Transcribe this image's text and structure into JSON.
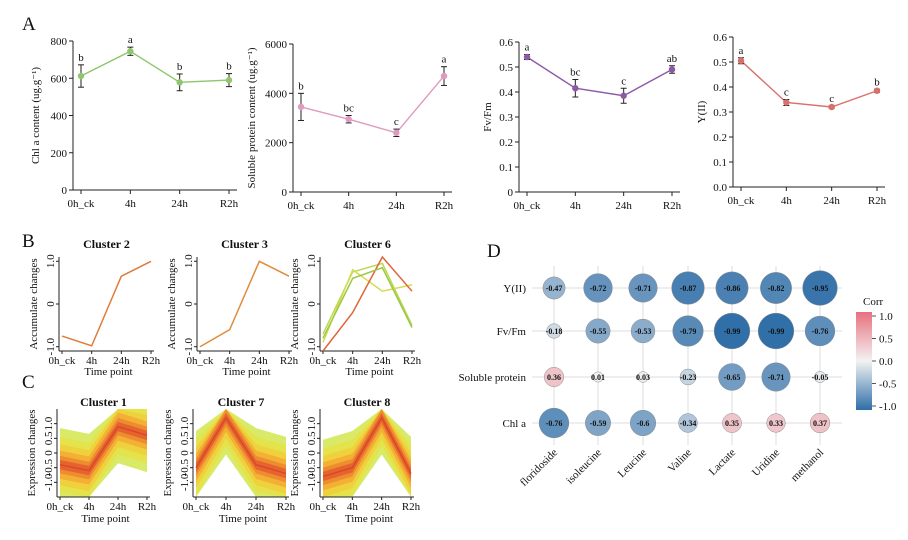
{
  "panels": {
    "A": "A",
    "B": "B",
    "C": "C",
    "D": "D"
  },
  "panelA": [
    {
      "type": "line",
      "ylabel": "Chl a content (ug.g⁻¹)",
      "categories": [
        "0h_ck",
        "4h",
        "24h",
        "R2h"
      ],
      "values": [
        612,
        745,
        578,
        590
      ],
      "errors": [
        60,
        22,
        45,
        35
      ],
      "letters": [
        "b",
        "a",
        "b",
        "b"
      ],
      "ylim": [
        0,
        800
      ],
      "yticks": [
        "0",
        "200",
        "400",
        "600",
        "800"
      ],
      "color": "#8dc66b"
    },
    {
      "type": "line",
      "ylabel": "Soluble protein content (ug.g⁻¹)",
      "categories": [
        "0h_ck",
        "4h",
        "24h",
        "R2h"
      ],
      "values": [
        3450,
        2950,
        2400,
        4700
      ],
      "errors": [
        550,
        150,
        150,
        380
      ],
      "letters": [
        "b",
        "bc",
        "c",
        "a"
      ],
      "ylim": [
        0,
        6000
      ],
      "yticks": [
        "0",
        "2000",
        "4000",
        "6000"
      ],
      "color": "#e09ac0"
    },
    {
      "type": "line",
      "ylabel": "Fv/Fm",
      "categories": [
        "0h_ck",
        "4h",
        "24h",
        "R2h"
      ],
      "values": [
        0.54,
        0.415,
        0.385,
        0.49
      ],
      "errors": [
        0.01,
        0.035,
        0.03,
        0.015
      ],
      "letters": [
        "a",
        "bc",
        "c",
        "ab"
      ],
      "ylim": [
        0,
        0.6
      ],
      "yticks": [
        "0",
        "0.1",
        "0.2",
        "0.3",
        "0.4",
        "0.5",
        "0.6"
      ],
      "color": "#8b5aa6"
    },
    {
      "type": "line",
      "ylabel": "Y(II)",
      "categories": [
        "0h_ck",
        "4h",
        "24h",
        "R2h"
      ],
      "values": [
        0.505,
        0.338,
        0.32,
        0.385
      ],
      "errors": [
        0.012,
        0.012,
        0.005,
        0.006
      ],
      "letters": [
        "a",
        "c",
        "c",
        "b"
      ],
      "ylim": [
        0,
        0.6
      ],
      "yticks": [
        "0.0",
        "0.1",
        "0.2",
        "0.3",
        "0.4",
        "0.5",
        "0.6"
      ],
      "color": "#d9706a"
    }
  ],
  "panelB": {
    "ylabel": "Accumulate changes",
    "xlabel": "Time point",
    "categories": [
      "0h_ck",
      "4h",
      "24h",
      "R2h"
    ],
    "yticks": [
      "-1.0",
      "0",
      "1.0"
    ],
    "ylim": [
      -1.1,
      1.1
    ],
    "clusters": [
      {
        "title": "Cluster 2",
        "lines": [
          {
            "values": [
              -0.75,
              -0.98,
              0.65,
              1.0
            ],
            "color": "#e07b39"
          }
        ]
      },
      {
        "title": "Cluster 3",
        "lines": [
          {
            "values": [
              -1.0,
              -0.6,
              1.0,
              0.65
            ],
            "color": "#e08b3a"
          }
        ]
      },
      {
        "title": "Cluster 6",
        "lines": [
          {
            "values": [
              -0.7,
              0.75,
              0.95,
              -0.5
            ],
            "color": "#b9d94a"
          },
          {
            "values": [
              -0.9,
              0.8,
              0.3,
              0.45
            ],
            "color": "#d6dc50"
          },
          {
            "values": [
              -1.1,
              -0.2,
              1.1,
              0.3
            ],
            "color": "#e0663a"
          },
          {
            "values": [
              -0.8,
              0.6,
              0.85,
              -0.55
            ],
            "color": "#9cc84a"
          }
        ]
      }
    ]
  },
  "panelC": {
    "ylabel": "Expression changes",
    "xlabel": "Time point",
    "categories": [
      "0h_ck",
      "4h",
      "24h",
      "R2h"
    ],
    "yticks": [
      "-1.0",
      "-0.5",
      "0",
      "0.5",
      "1.0"
    ],
    "ylim": [
      -1.5,
      1.5
    ],
    "clusters": [
      {
        "title": "Cluster 1",
        "mean": [
          -0.4,
          -0.6,
          0.9,
          0.6
        ]
      },
      {
        "title": "Cluster 7",
        "mean": [
          -0.5,
          1.2,
          -0.4,
          -0.7
        ]
      },
      {
        "title": "Cluster 8",
        "mean": [
          -0.8,
          -0.5,
          1.2,
          -0.7
        ]
      }
    ]
  },
  "panelD": {
    "type": "heatmap",
    "rows": [
      "Y(II)",
      "Fv/Fm",
      "Soluble protein",
      "Chl a"
    ],
    "cols": [
      "floridoside",
      "isoleucine",
      "Leucine",
      "Valine",
      "Lactate",
      "Uridine",
      "methanol"
    ],
    "labels": [
      [
        "-0.47",
        "-0.72",
        "-0.71",
        "-0.87",
        "-0.86",
        "-0.82",
        "-0.95"
      ],
      [
        "-0.18",
        "-0.55",
        "-0.53",
        "-0.79",
        "-0.99",
        "-0.99",
        "-0.76"
      ],
      [
        "0.36",
        "0.01",
        "0.03",
        "-0.23",
        "-0.65",
        "-0.71",
        "-0.05"
      ],
      [
        "-0.76",
        "-0.59",
        "-0.6",
        "-0.34",
        "0.35",
        "0.33",
        "0.37"
      ]
    ],
    "values": [
      [
        -0.47,
        -0.72,
        -0.71,
        -0.87,
        -0.86,
        -0.82,
        -0.95
      ],
      [
        -0.18,
        -0.55,
        -0.53,
        -0.79,
        -0.99,
        -0.99,
        -0.76
      ],
      [
        0.36,
        0.01,
        0.03,
        -0.23,
        -0.65,
        -0.71,
        -0.05
      ],
      [
        -0.76,
        -0.59,
        -0.6,
        -0.34,
        0.35,
        0.33,
        0.37
      ]
    ],
    "legend": {
      "title": "Corr",
      "ticks": [
        "1.0",
        "0.5",
        "0.0",
        "-0.5",
        "-1.0"
      ]
    },
    "colors": {
      "neg": "#2f6ea8",
      "mid": "#f2f2f2",
      "pos": "#e8717f"
    }
  }
}
